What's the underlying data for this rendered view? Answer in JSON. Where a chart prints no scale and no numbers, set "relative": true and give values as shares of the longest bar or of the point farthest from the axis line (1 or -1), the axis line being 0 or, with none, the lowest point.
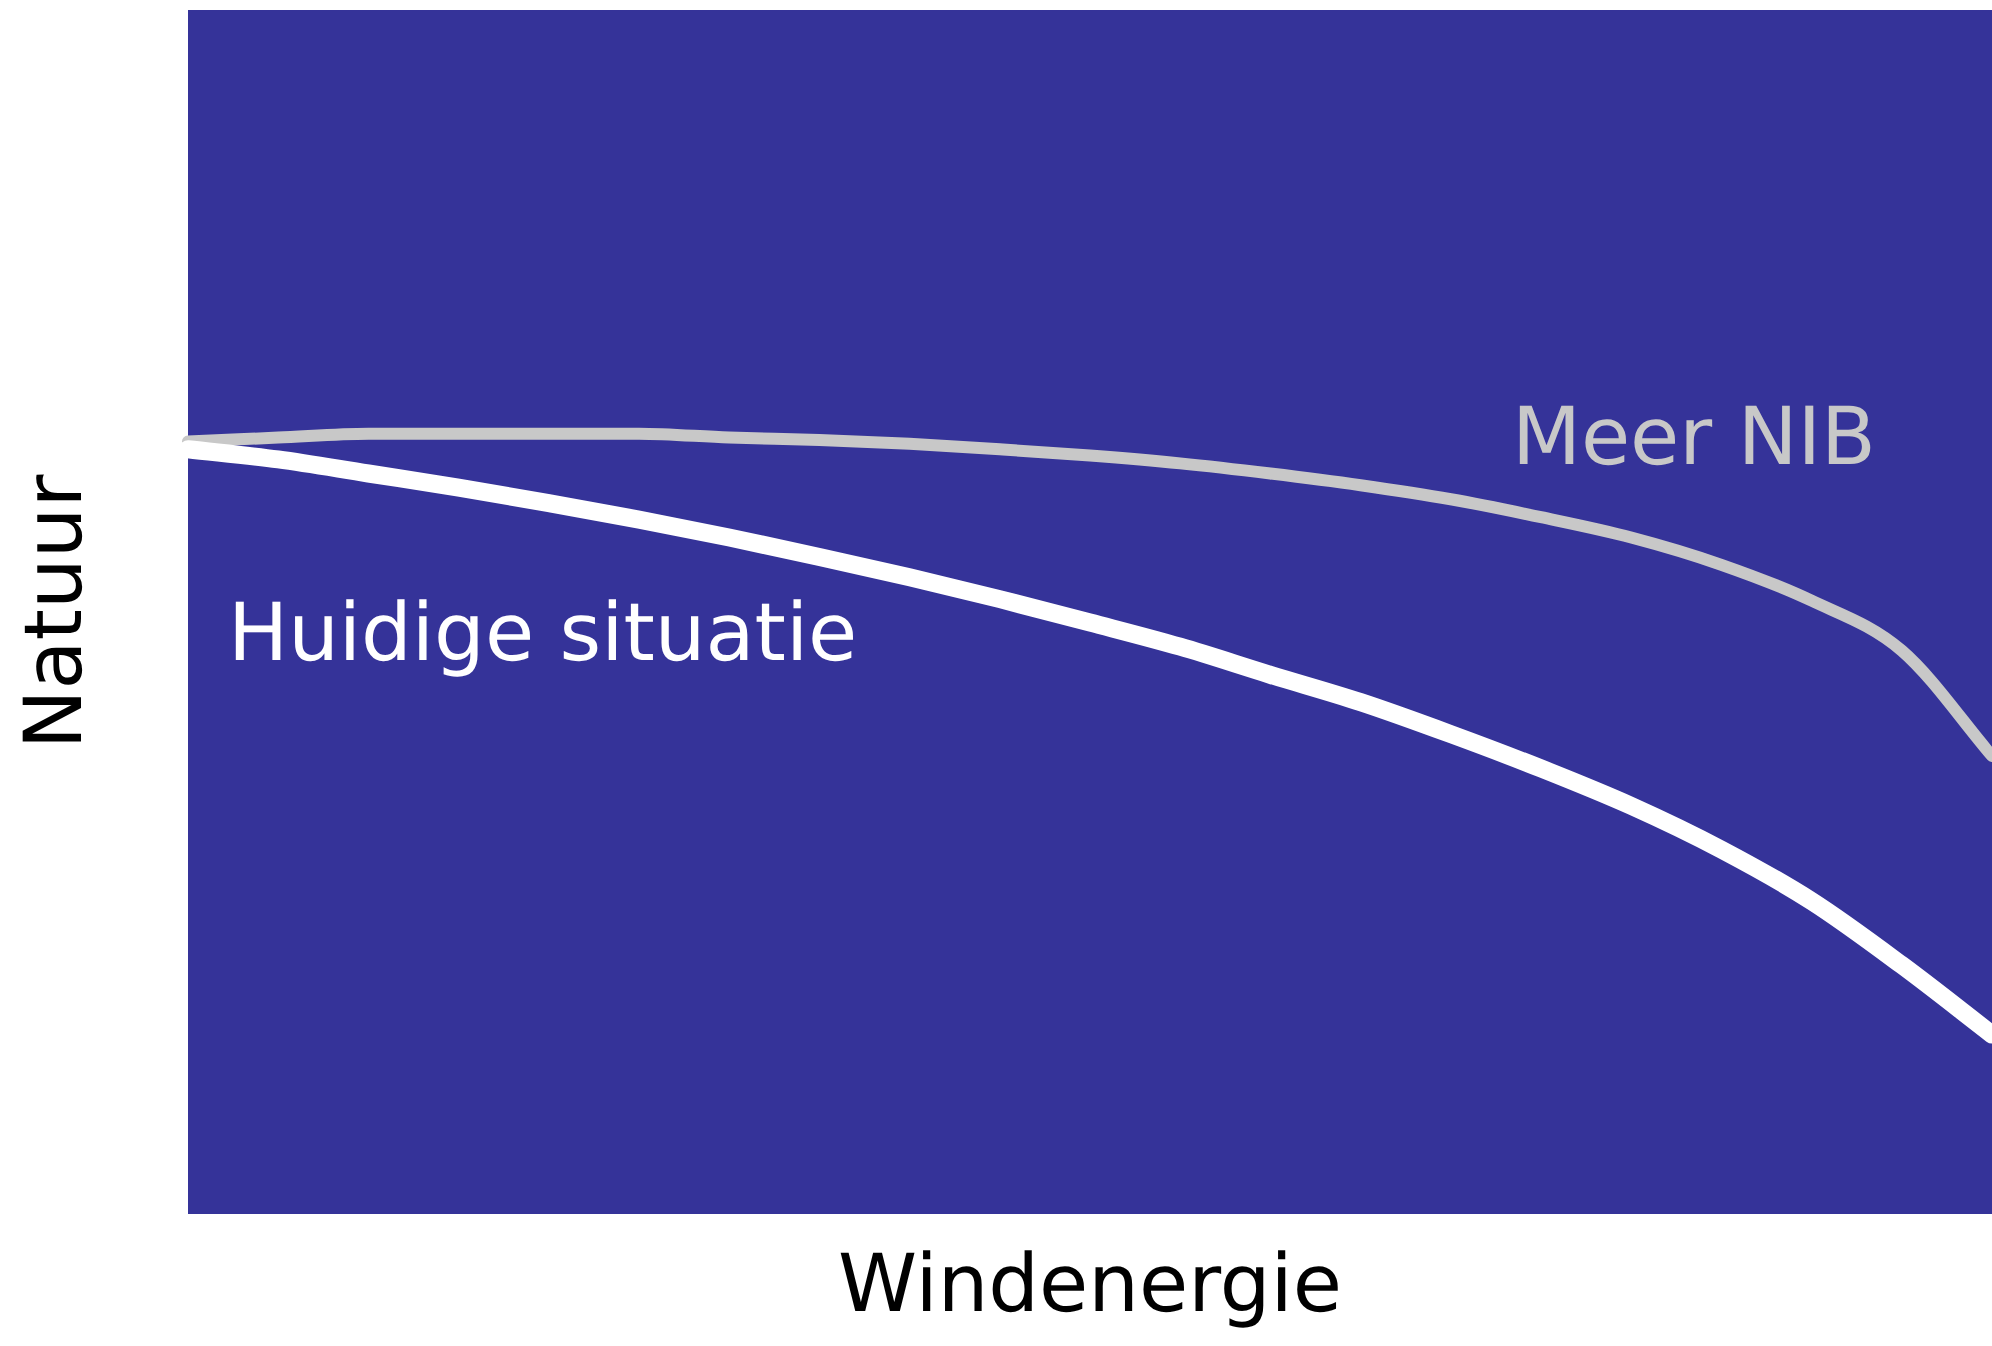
{
  "chart_data": {
    "type": "line",
    "relative": true,
    "xlabel": "Windenergie",
    "ylabel": "Natuur",
    "categories": [
      null,
      null,
      null,
      null,
      null,
      null,
      null,
      null,
      null,
      null,
      null,
      null,
      null,
      null,
      null,
      null,
      null,
      null,
      null,
      null,
      null
    ],
    "series": [
      {
        "name": "Huidige situatie",
        "color": "#ffffff",
        "values": [
          0.98,
          0.967,
          0.949,
          0.931,
          0.911,
          0.89,
          0.867,
          0.842,
          0.816,
          0.788,
          0.758,
          0.727,
          0.691,
          0.656,
          0.615,
          0.571,
          0.523,
          0.467,
          0.401,
          0.319,
          0.23
        ]
      },
      {
        "name": "Meer NIB",
        "color": "#c8c8c8",
        "values": [
          0.99,
          0.995,
          1,
          1,
          1,
          1,
          0.995,
          0.992,
          0.987,
          0.98,
          0.972,
          0.962,
          0.949,
          0.934,
          0.916,
          0.893,
          0.867,
          0.832,
          0.786,
          0.722,
          0.587
        ]
      }
    ],
    "grid": false,
    "legend": false,
    "marker": "none",
    "line_style": "solid"
  }
}
